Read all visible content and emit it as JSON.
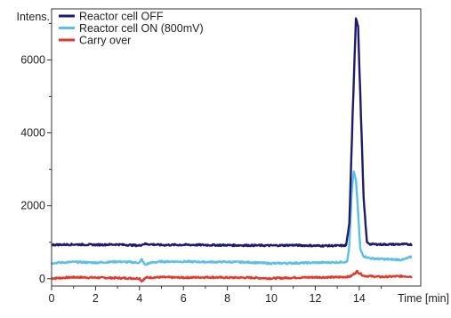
{
  "chart_data": {
    "type": "line",
    "xlabel": "Time [min]",
    "ylabel": "Intens.",
    "xlim": [
      0,
      16.8
    ],
    "ylim": [
      -200,
      7400
    ],
    "x_ticks": [
      0,
      2,
      4,
      6,
      8,
      10,
      12,
      14
    ],
    "y_ticks": [
      0,
      2000,
      4000,
      6000
    ],
    "legend_position": "top-left",
    "series": [
      {
        "name": "Reactor cell OFF",
        "color": "#1f1a6e",
        "points": [
          [
            0,
            930
          ],
          [
            1,
            940
          ],
          [
            2,
            930
          ],
          [
            3,
            940
          ],
          [
            4,
            910
          ],
          [
            4.2,
            955
          ],
          [
            5,
            925
          ],
          [
            6,
            930
          ],
          [
            7,
            925
          ],
          [
            8,
            920
          ],
          [
            9,
            915
          ],
          [
            10,
            910
          ],
          [
            11,
            920
          ],
          [
            12,
            905
          ],
          [
            13,
            905
          ],
          [
            13.4,
            910
          ],
          [
            13.55,
            1500
          ],
          [
            13.7,
            4500
          ],
          [
            13.85,
            7150
          ],
          [
            13.95,
            6900
          ],
          [
            14.05,
            5000
          ],
          [
            14.2,
            2200
          ],
          [
            14.35,
            1000
          ],
          [
            14.5,
            950
          ],
          [
            15,
            940
          ],
          [
            16,
            945
          ],
          [
            16.4,
            940
          ]
        ]
      },
      {
        "name": "Reactor cell ON (800mV)",
        "color": "#5bbfe8",
        "points": [
          [
            0,
            430
          ],
          [
            1,
            460
          ],
          [
            2,
            440
          ],
          [
            3,
            470
          ],
          [
            4,
            440
          ],
          [
            4.1,
            530
          ],
          [
            4.25,
            380
          ],
          [
            4.5,
            440
          ],
          [
            5,
            470
          ],
          [
            6,
            470
          ],
          [
            7,
            460
          ],
          [
            8,
            460
          ],
          [
            9,
            450
          ],
          [
            10,
            420
          ],
          [
            11,
            430
          ],
          [
            12,
            440
          ],
          [
            13,
            450
          ],
          [
            13.45,
            470
          ],
          [
            13.55,
            900
          ],
          [
            13.65,
            2300
          ],
          [
            13.75,
            2950
          ],
          [
            13.85,
            2700
          ],
          [
            13.95,
            1800
          ],
          [
            14.05,
            800
          ],
          [
            14.2,
            620
          ],
          [
            14.5,
            560
          ],
          [
            15,
            540
          ],
          [
            16,
            520
          ],
          [
            16.4,
            610
          ]
        ]
      },
      {
        "name": "Carry over",
        "color": "#e03a2e",
        "points": [
          [
            0,
            10
          ],
          [
            1,
            40
          ],
          [
            2,
            30
          ],
          [
            3,
            20
          ],
          [
            4,
            10
          ],
          [
            4.1,
            -60
          ],
          [
            4.3,
            30
          ],
          [
            5,
            40
          ],
          [
            6,
            30
          ],
          [
            7,
            40
          ],
          [
            8,
            30
          ],
          [
            9,
            30
          ],
          [
            10,
            10
          ],
          [
            11,
            30
          ],
          [
            12,
            40
          ],
          [
            13,
            40
          ],
          [
            13.6,
            60
          ],
          [
            13.9,
            200
          ],
          [
            14.2,
            80
          ],
          [
            15,
            50
          ],
          [
            16,
            70
          ],
          [
            16.4,
            60
          ]
        ]
      }
    ]
  }
}
